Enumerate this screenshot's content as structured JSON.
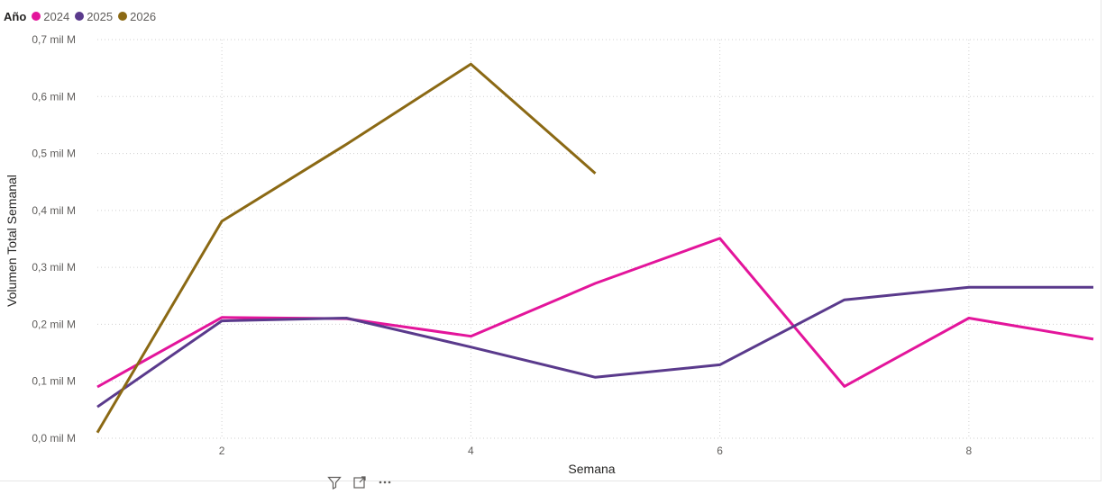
{
  "legend": {
    "title": "Año",
    "items": [
      {
        "label": "2024",
        "color": "#E3159B"
      },
      {
        "label": "2025",
        "color": "#5A3A8C"
      },
      {
        "label": "2026",
        "color": "#8B6914"
      }
    ]
  },
  "chart_data": {
    "type": "line",
    "xlabel": "Semana",
    "ylabel": "Volumen Total Semanal",
    "xlim": [
      1,
      9
    ],
    "ylim": [
      0,
      0.7
    ],
    "x_ticks": [
      2,
      4,
      6,
      8
    ],
    "y_ticks": [
      {
        "value": 0.0,
        "label": "0,0 mil M"
      },
      {
        "value": 0.1,
        "label": "0,1 mil M"
      },
      {
        "value": 0.2,
        "label": "0,2 mil M"
      },
      {
        "value": 0.3,
        "label": "0,3 mil M"
      },
      {
        "value": 0.4,
        "label": "0,4 mil M"
      },
      {
        "value": 0.5,
        "label": "0,5 mil M"
      },
      {
        "value": 0.6,
        "label": "0,6 mil M"
      },
      {
        "value": 0.7,
        "label": "0,7 mil M"
      }
    ],
    "grid": true,
    "legend_position": "top-left",
    "series": [
      {
        "name": "2024",
        "color": "#E3159B",
        "x": [
          1,
          2,
          3,
          4,
          5,
          6,
          7,
          8,
          9
        ],
        "values": [
          0.09,
          0.212,
          0.21,
          0.179,
          0.272,
          0.351,
          0.091,
          0.211,
          0.174
        ]
      },
      {
        "name": "2025",
        "color": "#5A3A8C",
        "x": [
          1,
          2,
          3,
          4,
          5,
          6,
          7,
          8,
          9
        ],
        "values": [
          0.055,
          0.206,
          0.211,
          0.16,
          0.107,
          0.129,
          0.243,
          0.265,
          0.265
        ]
      },
      {
        "name": "2026",
        "color": "#8B6914",
        "x": [
          1,
          2,
          3,
          4,
          5
        ],
        "values": [
          0.01,
          0.381,
          0.516,
          0.657,
          0.465
        ]
      }
    ]
  },
  "toolbar": {
    "filter_icon": "filter-icon",
    "focus_icon": "focus-mode-icon",
    "more_icon": "more-options-icon"
  }
}
